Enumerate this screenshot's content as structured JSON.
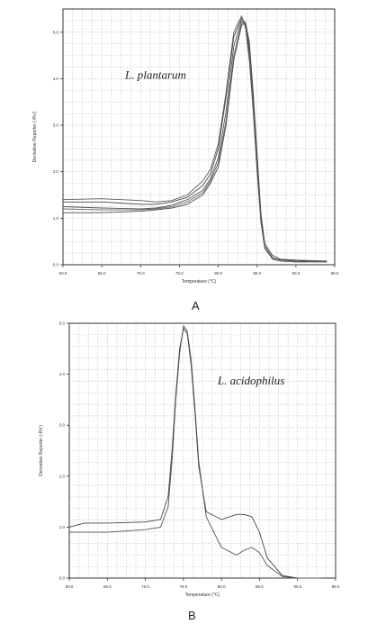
{
  "chart_data": [
    {
      "type": "line",
      "panel_label": "A",
      "annotation": "L. plantarum",
      "xlabel": "Temperature (°C)",
      "ylabel": "Derivative Reporter (-Rn')",
      "xlim": [
        60,
        95
      ],
      "ylim": [
        0,
        5.5
      ],
      "x_ticks": [
        "60.0",
        "65.0",
        "70.0",
        "75.0",
        "80.0",
        "85.0",
        "90.0",
        "95.0"
      ],
      "y_ticks": [
        "0.0",
        "1.0",
        "2.0",
        "3.0",
        "4.0",
        "5.0"
      ],
      "grid": true,
      "series": [
        {
          "x": [
            60,
            65,
            70,
            72,
            74,
            76,
            78,
            79,
            80,
            81,
            82,
            83,
            83.5,
            84,
            84.5,
            85,
            85.5,
            86,
            87,
            88,
            90,
            92,
            94
          ],
          "values": [
            1.35,
            1.35,
            1.3,
            1.3,
            1.35,
            1.45,
            1.7,
            1.95,
            2.5,
            3.6,
            4.9,
            5.3,
            5.2,
            4.6,
            3.5,
            2.2,
            1.0,
            0.4,
            0.15,
            0.1,
            0.08,
            0.07,
            0.07
          ]
        },
        {
          "x": [
            60,
            65,
            70,
            72,
            74,
            76,
            78,
            79,
            80,
            81,
            82,
            83,
            83.5,
            84,
            84.5,
            85,
            85.5,
            86,
            87,
            88,
            90,
            92,
            94
          ],
          "values": [
            1.25,
            1.22,
            1.2,
            1.22,
            1.28,
            1.4,
            1.6,
            1.85,
            2.3,
            3.3,
            4.7,
            5.25,
            5.15,
            4.5,
            3.4,
            2.1,
            0.95,
            0.35,
            0.12,
            0.08,
            0.06,
            0.06,
            0.06
          ]
        },
        {
          "x": [
            60,
            65,
            70,
            72,
            74,
            76,
            78,
            79,
            80,
            81,
            82,
            83,
            83.5,
            84,
            84.5,
            85,
            85.5,
            86,
            87,
            88,
            90,
            92,
            94
          ],
          "values": [
            1.2,
            1.18,
            1.18,
            1.2,
            1.25,
            1.35,
            1.55,
            1.8,
            2.2,
            3.1,
            4.5,
            5.2,
            5.2,
            4.7,
            3.6,
            2.3,
            1.05,
            0.4,
            0.15,
            0.1,
            0.08,
            0.07,
            0.07
          ]
        },
        {
          "x": [
            60,
            65,
            70,
            72,
            74,
            76,
            78,
            79,
            80,
            81,
            82,
            83,
            83.5,
            84,
            84.5,
            85,
            85.5,
            86,
            87,
            88,
            90,
            92,
            94
          ],
          "values": [
            1.12,
            1.12,
            1.15,
            1.18,
            1.22,
            1.3,
            1.5,
            1.75,
            2.1,
            3.0,
            4.4,
            5.15,
            5.2,
            4.8,
            3.7,
            2.4,
            1.1,
            0.45,
            0.2,
            0.12,
            0.1,
            0.09,
            0.08
          ]
        },
        {
          "x": [
            60,
            65,
            70,
            72,
            74,
            76,
            78,
            79,
            80,
            81,
            82,
            83,
            83.5,
            84,
            84.5,
            85,
            85.5,
            86,
            87,
            88,
            90,
            92,
            94
          ],
          "values": [
            1.4,
            1.42,
            1.38,
            1.35,
            1.38,
            1.5,
            1.8,
            2.05,
            2.6,
            3.7,
            5.0,
            5.35,
            5.1,
            4.4,
            3.3,
            2.0,
            0.9,
            0.35,
            0.14,
            0.1,
            0.08,
            0.08,
            0.07
          ]
        }
      ]
    },
    {
      "type": "line",
      "panel_label": "B",
      "annotation": "L. acidophilus",
      "xlabel": "Temperature (°C)",
      "ylabel": "Derivative Reporter (-Rn')",
      "xlim": [
        60,
        95
      ],
      "ylim": [
        0,
        5.0
      ],
      "x_ticks": [
        "60.0",
        "65.0",
        "70.0",
        "75.0",
        "80.0",
        "85.0",
        "90.0",
        "95.0"
      ],
      "y_ticks": [
        "0.0",
        "1.0",
        "2.0",
        "3.0",
        "4.0",
        "5.0"
      ],
      "grid": true,
      "series": [
        {
          "x": [
            60,
            62,
            65,
            70,
            72,
            73,
            73.5,
            74,
            74.5,
            75,
            75.5,
            76,
            76.5,
            77,
            78,
            80,
            82,
            83,
            84,
            85,
            86,
            88,
            90,
            93
          ],
          "values": [
            1.0,
            1.08,
            1.08,
            1.1,
            1.15,
            1.6,
            2.5,
            3.6,
            4.5,
            4.9,
            4.8,
            4.2,
            3.3,
            2.2,
            1.3,
            1.15,
            1.25,
            1.25,
            1.2,
            0.9,
            0.4,
            0.05,
            0.0,
            0.0
          ]
        },
        {
          "x": [
            60,
            62,
            65,
            70,
            72,
            73,
            73.5,
            74,
            74.5,
            75,
            75.5,
            76,
            76.5,
            77,
            78,
            80,
            82,
            83,
            84,
            85,
            86,
            88,
            90,
            93
          ],
          "values": [
            0.9,
            0.9,
            0.9,
            0.95,
            1.0,
            1.4,
            2.3,
            3.5,
            4.4,
            4.95,
            4.85,
            4.3,
            3.4,
            2.3,
            1.2,
            0.6,
            0.45,
            0.55,
            0.6,
            0.5,
            0.25,
            0.03,
            0.0,
            0.0
          ]
        }
      ]
    }
  ]
}
